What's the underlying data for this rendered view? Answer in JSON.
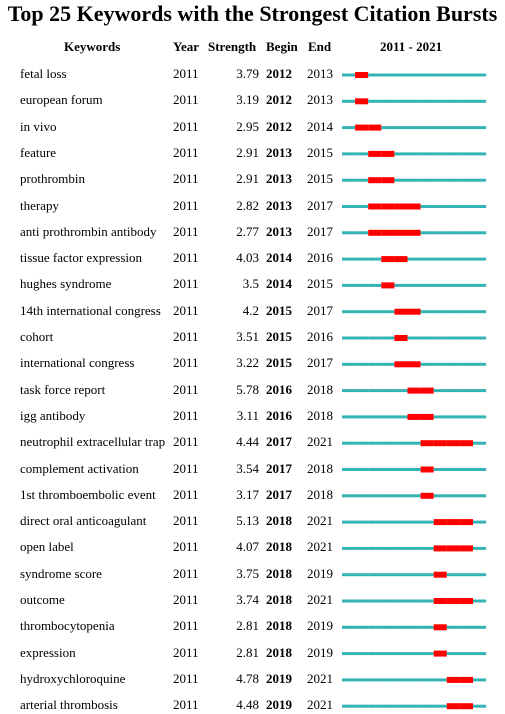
{
  "title": "Top 25 Keywords with the Strongest Citation Bursts",
  "headers": {
    "keywords": "Keywords",
    "year": "Year",
    "strength": "Strength",
    "begin": "Begin",
    "end": "End",
    "range": "2011 - 2021"
  },
  "colors": {
    "normal": "#33b3b3",
    "burst": "#ff0000"
  },
  "chart_data": {
    "type": "table",
    "title": "Top 25 Keywords with the Strongest Citation Bursts",
    "timeline_range": [
      2011,
      2021
    ],
    "rows": [
      {
        "keyword": "fetal loss",
        "year": "2011",
        "strength": "3.79",
        "begin": "2012",
        "end": "2013"
      },
      {
        "keyword": "european forum",
        "year": "2011",
        "strength": "3.19",
        "begin": "2012",
        "end": "2013"
      },
      {
        "keyword": "in vivo",
        "year": "2011",
        "strength": "2.95",
        "begin": "2012",
        "end": "2014"
      },
      {
        "keyword": "feature",
        "year": "2011",
        "strength": "2.91",
        "begin": "2013",
        "end": "2015"
      },
      {
        "keyword": "prothrombin",
        "year": "2011",
        "strength": "2.91",
        "begin": "2013",
        "end": "2015"
      },
      {
        "keyword": "therapy",
        "year": "2011",
        "strength": "2.82",
        "begin": "2013",
        "end": "2017"
      },
      {
        "keyword": "anti prothrombin antibody",
        "year": "2011",
        "strength": "2.77",
        "begin": "2013",
        "end": "2017"
      },
      {
        "keyword": "tissue factor expression",
        "year": "2011",
        "strength": "4.03",
        "begin": "2014",
        "end": "2016"
      },
      {
        "keyword": "hughes syndrome",
        "year": "2011",
        "strength": "3.5",
        "begin": "2014",
        "end": "2015"
      },
      {
        "keyword": "14th international congress",
        "year": "2011",
        "strength": "4.2",
        "begin": "2015",
        "end": "2017"
      },
      {
        "keyword": "cohort",
        "year": "2011",
        "strength": "3.51",
        "begin": "2015",
        "end": "2016"
      },
      {
        "keyword": "international congress",
        "year": "2011",
        "strength": "3.22",
        "begin": "2015",
        "end": "2017"
      },
      {
        "keyword": "task force report",
        "year": "2011",
        "strength": "5.78",
        "begin": "2016",
        "end": "2018"
      },
      {
        "keyword": "igg antibody",
        "year": "2011",
        "strength": "3.11",
        "begin": "2016",
        "end": "2018"
      },
      {
        "keyword": "neutrophil extracellular trap",
        "year": "2011",
        "strength": "4.44",
        "begin": "2017",
        "end": "2021"
      },
      {
        "keyword": "complement activation",
        "year": "2011",
        "strength": "3.54",
        "begin": "2017",
        "end": "2018"
      },
      {
        "keyword": "1st thromboembolic event",
        "year": "2011",
        "strength": "3.17",
        "begin": "2017",
        "end": "2018"
      },
      {
        "keyword": "direct oral anticoagulant",
        "year": "2011",
        "strength": "5.13",
        "begin": "2018",
        "end": "2021"
      },
      {
        "keyword": "open label",
        "year": "2011",
        "strength": "4.07",
        "begin": "2018",
        "end": "2021"
      },
      {
        "keyword": "syndrome score",
        "year": "2011",
        "strength": "3.75",
        "begin": "2018",
        "end": "2019"
      },
      {
        "keyword": "outcome",
        "year": "2011",
        "strength": "3.74",
        "begin": "2018",
        "end": "2021"
      },
      {
        "keyword": "thrombocytopenia",
        "year": "2011",
        "strength": "2.81",
        "begin": "2018",
        "end": "2019"
      },
      {
        "keyword": "expression",
        "year": "2011",
        "strength": "2.81",
        "begin": "2018",
        "end": "2019"
      },
      {
        "keyword": "hydroxychloroquine",
        "year": "2011",
        "strength": "4.78",
        "begin": "2019",
        "end": "2021"
      },
      {
        "keyword": "arterial thrombosis",
        "year": "2011",
        "strength": "4.48",
        "begin": "2019",
        "end": "2021"
      }
    ]
  }
}
